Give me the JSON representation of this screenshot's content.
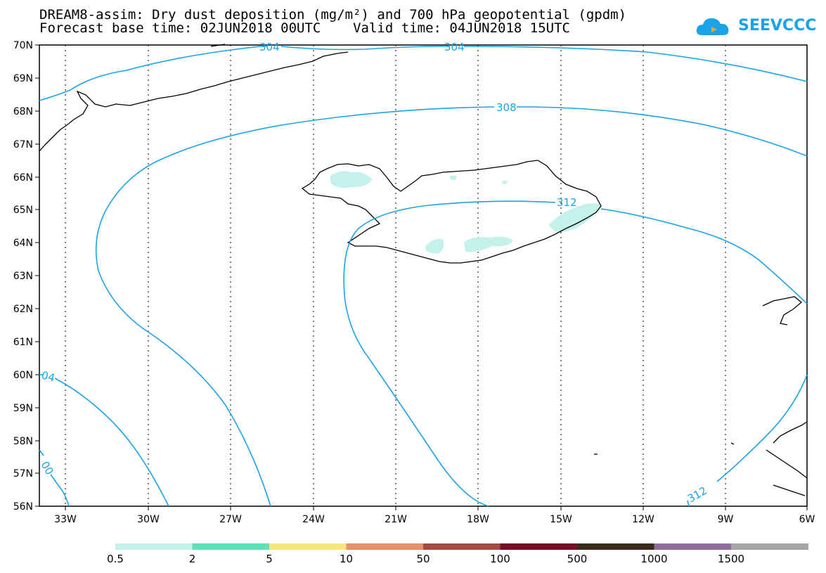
{
  "title_line1": "DREAM8-assim: Dry dust deposition (mg/m²) and 700 hPa geopotential (gpdm)",
  "title_line2": "Forecast base time: 02JUN2018 00UTC    Valid time: 04JUN2018 15UTC",
  "logo_text": "SEEVCCC",
  "lat_labels": [
    "70N",
    "69N",
    "68N",
    "67N",
    "66N",
    "65N",
    "64N",
    "63N",
    "62N",
    "61N",
    "60N",
    "59N",
    "58N",
    "57N",
    "56N"
  ],
  "lon_labels": [
    "33W",
    "30W",
    "27W",
    "24W",
    "21W",
    "18W",
    "15W",
    "12W",
    "9W",
    "6W"
  ],
  "contour_labels": [
    "304",
    "304",
    "308",
    "312",
    "04",
    "00",
    "312"
  ],
  "colorbar": {
    "colors": [
      "#c4f2ea",
      "#5fe0b8",
      "#f5e77a",
      "#ea9068",
      "#a44a40",
      "#7a0c28",
      "#3a2a1a",
      "#8e6d9a",
      "#a6a6a6"
    ],
    "labels": [
      "0.5",
      "2",
      "5",
      "10",
      "50",
      "100",
      "500",
      "1000",
      "1500"
    ]
  },
  "colors": {
    "contour": "#1aa3e8",
    "coast": "#000000",
    "dust": "#c4f2ea"
  }
}
